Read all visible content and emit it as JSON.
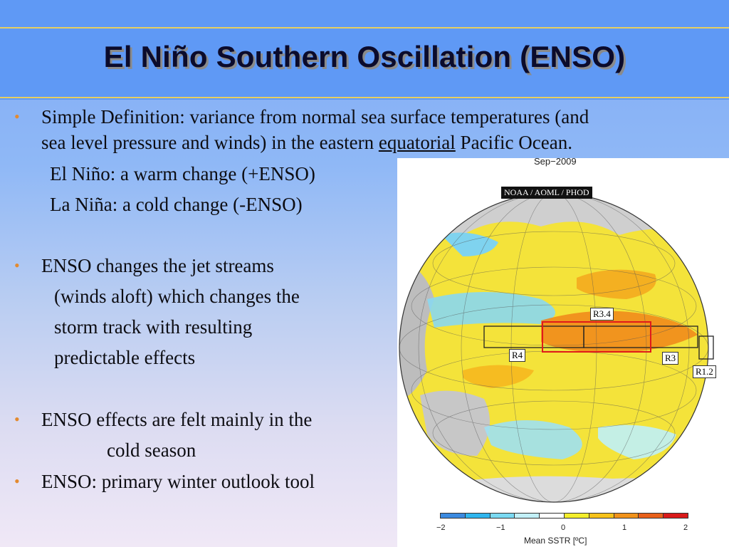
{
  "slide": {
    "title": "El Niño Southern Oscillation (ENSO)",
    "colors": {
      "title_bar": "#5f99f5",
      "rule": "#e7cf61",
      "bullet": "#e38a2f",
      "title_text": "#0b0b2c"
    }
  },
  "bullets": {
    "b1_line1": "Simple Definition:  variance from normal sea surface temperatures (and",
    "b1_line2_pre": "sea level pressure and winds) in the eastern ",
    "b1_line2_link": "equatorial",
    "b1_line2_post": " Pacific Ocean.",
    "elnino": "El Niño: a warm change (+ENSO)",
    "lanina": "La Niña:  a cold change  (-ENSO)",
    "b2_line1": "ENSO changes the jet streams",
    "b2_line2": "(winds aloft) which changes the",
    "b2_line3": "storm track with resulting",
    "b2_line4": "predictable effects",
    "b3_line1": "ENSO effects are felt mainly in the",
    "b3_line2": "cold season",
    "b4_line1": "ENSO: primary winter outlook tool",
    "bullet_glyph": "•"
  },
  "map": {
    "date": "Sep−2009",
    "source": "NOAA / AOML / PHOD",
    "regions": [
      "R3.4",
      "R4",
      "R3",
      "R1.2"
    ],
    "colorbar": {
      "label": "Mean SSTR [ºC]",
      "ticks": [
        "−2",
        "−1",
        "0",
        "1",
        "2"
      ],
      "colors": [
        "#3b8ae0",
        "#2fb5ee",
        "#7ad9f2",
        "#c2f0f8",
        "#ffffff",
        "#f4ee2b",
        "#f7c21a",
        "#f1921a",
        "#e8601a",
        "#d91a1a"
      ]
    }
  }
}
